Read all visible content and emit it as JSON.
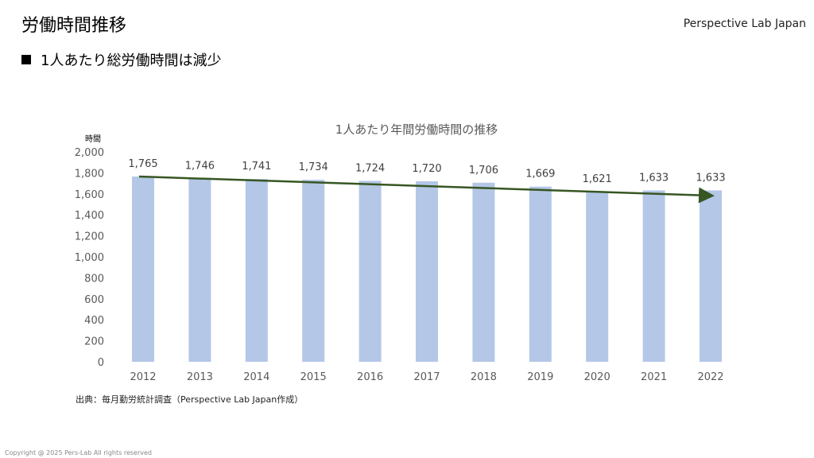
{
  "header": {
    "title": "労働時間推移",
    "brand": "Perspective Lab Japan",
    "subtitle": "1人あたり総労働時間は減少"
  },
  "footer": {
    "source": "出典：毎月勤労統計調査（Perspective Lab Japan作成）",
    "copyright": "Copyright @ 2025 Pers-Lab All rights reserved"
  },
  "colors": {
    "bar": "#b4c7e7",
    "trend": "#375623",
    "text": "#595959"
  },
  "chart_data": {
    "type": "bar",
    "title": "1人あたり年間労働時間の推移",
    "ylabel": "時間",
    "xlabel": "",
    "ylim": [
      0,
      2000
    ],
    "yticks": [
      "0",
      "200",
      "400",
      "600",
      "800",
      "1,000",
      "1,200",
      "1,400",
      "1,600",
      "1,800",
      "2,000"
    ],
    "categories": [
      "2012",
      "2013",
      "2014",
      "2015",
      "2016",
      "2017",
      "2018",
      "2019",
      "2020",
      "2021",
      "2022"
    ],
    "values": [
      1765,
      1746,
      1741,
      1734,
      1724,
      1720,
      1706,
      1669,
      1621,
      1633,
      1633
    ],
    "labels": [
      "1,765",
      "1,746",
      "1,741",
      "1,734",
      "1,724",
      "1,720",
      "1,706",
      "1,669",
      "1,621",
      "1,633",
      "1,633"
    ],
    "trendline": {
      "start": 1765,
      "end": 1583,
      "style": "arrow"
    },
    "grid": false
  }
}
